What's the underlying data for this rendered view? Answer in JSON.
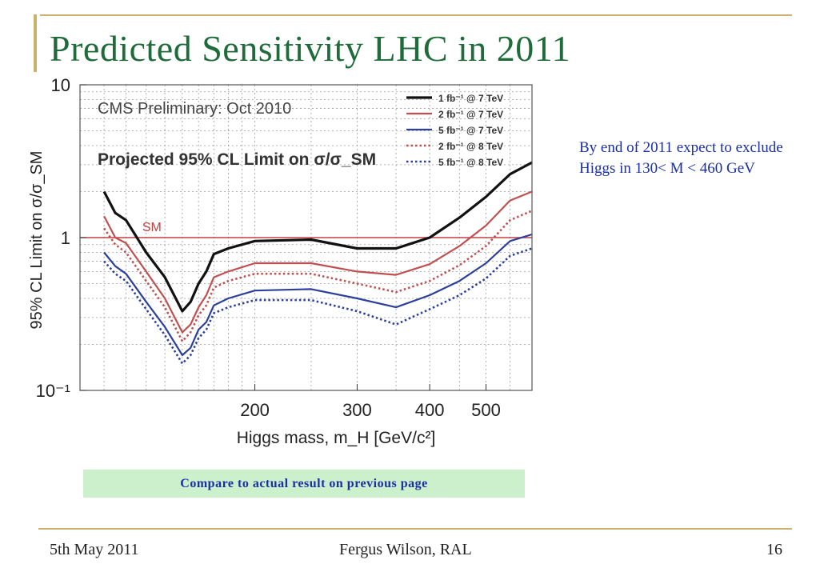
{
  "slide": {
    "title": "Predicted Sensitivity LHC in 2011",
    "note": "By end of 2011 expect to exclude Higgs in 130< M < 460 GeV",
    "banner": "Compare to actual result on previous page",
    "footer_left": "5th May 2011",
    "footer_center": "Fergus Wilson, RAL",
    "footer_right": "16",
    "colors": {
      "title": "#1f6b3a",
      "accent_rule": "#c9b26a",
      "note": "#1a2fa8",
      "banner_bg": "#ccf0cc"
    }
  },
  "chart_data": {
    "type": "line",
    "title": "CMS Preliminary: Oct 2010",
    "subtitle": "Projected 95% CL Limit on σ/σ_SM",
    "xlabel": "Higgs mass, m_H [GeV/c²]",
    "ylabel": "95% CL Limit on σ/σ_SM",
    "xscale": "log",
    "yscale": "log",
    "xlim": [
      100,
      600
    ],
    "ylim": [
      0.1,
      10
    ],
    "xticks": [
      200,
      300,
      400,
      500
    ],
    "xtick_labels": [
      "200",
      "300",
      "400",
      "500"
    ],
    "yticks": [
      0.1,
      1,
      10
    ],
    "ytick_labels": [
      "10⁻¹",
      "1",
      "10"
    ],
    "grid": true,
    "legend_position": "top-right",
    "reference_line": {
      "label": "SM",
      "y": 1,
      "color": "#c04040"
    },
    "series": [
      {
        "name": "1 fb⁻¹ @ 7 TeV",
        "color": "#111111",
        "style": "solid",
        "x": [
          110,
          115,
          120,
          130,
          140,
          150,
          155,
          160,
          165,
          170,
          180,
          200,
          250,
          300,
          350,
          400,
          450,
          500,
          550,
          600
        ],
        "y": [
          2.0,
          1.45,
          1.3,
          0.8,
          0.55,
          0.33,
          0.38,
          0.5,
          0.6,
          0.78,
          0.85,
          0.95,
          0.97,
          0.85,
          0.85,
          1.0,
          1.35,
          1.85,
          2.6,
          3.1
        ]
      },
      {
        "name": "2 fb⁻¹ @ 7 TeV",
        "color": "#c05050",
        "style": "solid",
        "x": [
          110,
          115,
          120,
          130,
          140,
          150,
          155,
          160,
          165,
          170,
          180,
          200,
          250,
          300,
          350,
          400,
          450,
          500,
          550,
          600
        ],
        "y": [
          1.38,
          1.0,
          0.92,
          0.6,
          0.4,
          0.24,
          0.27,
          0.35,
          0.42,
          0.55,
          0.6,
          0.68,
          0.68,
          0.6,
          0.57,
          0.67,
          0.88,
          1.2,
          1.75,
          2.0
        ]
      },
      {
        "name": "5 fb⁻¹ @ 7 TeV",
        "color": "#2c3f9c",
        "style": "solid",
        "x": [
          110,
          115,
          120,
          130,
          140,
          150,
          155,
          160,
          165,
          170,
          180,
          200,
          250,
          300,
          350,
          400,
          450,
          500,
          550,
          600
        ],
        "y": [
          0.8,
          0.65,
          0.58,
          0.38,
          0.26,
          0.17,
          0.19,
          0.25,
          0.28,
          0.36,
          0.4,
          0.45,
          0.46,
          0.4,
          0.35,
          0.42,
          0.52,
          0.68,
          0.95,
          1.05
        ]
      },
      {
        "name": "2 fb⁻¹ @ 8 TeV",
        "color": "#c05050",
        "style": "dotted",
        "x": [
          110,
          115,
          120,
          130,
          140,
          150,
          155,
          160,
          165,
          170,
          180,
          200,
          250,
          300,
          350,
          400,
          450,
          500,
          550,
          600
        ],
        "y": [
          1.15,
          0.9,
          0.8,
          0.52,
          0.35,
          0.21,
          0.24,
          0.31,
          0.36,
          0.47,
          0.52,
          0.58,
          0.58,
          0.5,
          0.44,
          0.52,
          0.66,
          0.88,
          1.3,
          1.5
        ]
      },
      {
        "name": "5 fb⁻¹ @ 8 TeV",
        "color": "#2c3f9c",
        "style": "dotted",
        "x": [
          110,
          115,
          120,
          130,
          140,
          150,
          155,
          160,
          165,
          170,
          180,
          200,
          250,
          300,
          350,
          400,
          450,
          500,
          550,
          600
        ],
        "y": [
          0.7,
          0.58,
          0.52,
          0.34,
          0.23,
          0.15,
          0.17,
          0.22,
          0.25,
          0.32,
          0.35,
          0.39,
          0.39,
          0.33,
          0.27,
          0.34,
          0.42,
          0.54,
          0.76,
          0.85
        ]
      }
    ]
  }
}
